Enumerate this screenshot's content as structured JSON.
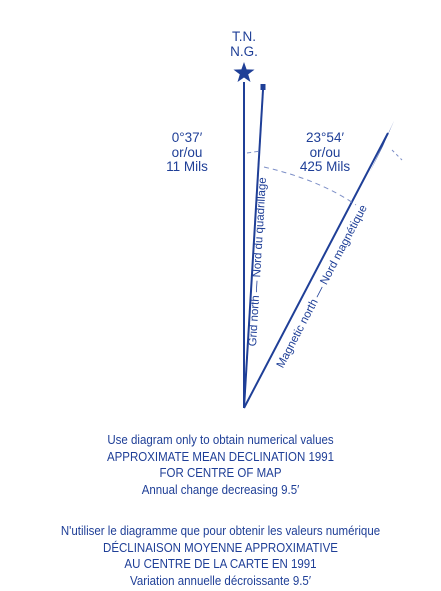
{
  "colors": {
    "ink": "#1f3f97",
    "guide": "#7d8fc7"
  },
  "header": {
    "true_north_label": "T.N.",
    "grid_north_label": "N.G."
  },
  "grid_angle": {
    "degrees": "0°37′",
    "or_text": "or/ou",
    "mils": "11 Mils"
  },
  "magnetic_angle": {
    "degrees": "23°54′",
    "or_text": "or/ou",
    "mils": "425 Mils"
  },
  "lines": {
    "grid_label": "Grid north — Nord du quadrillage",
    "magnetic_label": "Magnetic north — Nord magnétique"
  },
  "notes_en": {
    "line1": "Use diagram only to obtain numerical values",
    "line2": "APPROXIMATE MEAN DECLINATION 1991",
    "line3": "FOR CENTRE OF MAP",
    "line4": "Annual change decreasing 9.5′"
  },
  "notes_fr": {
    "line1": "N'utiliser le diagramme que pour obtenir les valeurs numérique",
    "line2": "DÉCLINAISON MOYENNE APPROXIMATIVE",
    "line3": "AU CENTRE DE LA CARTE EN 1991",
    "line4": "Variation annuelle décroissante 9.5′"
  }
}
